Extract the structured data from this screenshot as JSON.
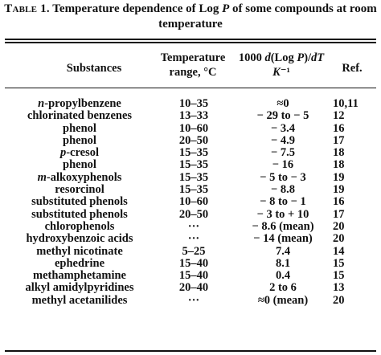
{
  "caption": {
    "label": "Table 1.",
    "line1": "Temperature dependence of Log P of some compounds at room",
    "line2": "temperature"
  },
  "headers": {
    "substances": "Substances",
    "temperature_line1": "Temperature",
    "temperature_line2": "range, °C",
    "deriv_line1": "1000 d(Log P)/dT",
    "deriv_line2": "K⁻¹",
    "ref": "Ref."
  },
  "rows": [
    {
      "substance": "n-propylbenzene",
      "range": "10–35",
      "value": "≈0",
      "ref": "10,11"
    },
    {
      "substance": "chlorinated benzenes",
      "range": "13–33",
      "value": "− 29 to − 5",
      "ref": "12"
    },
    {
      "substance": "phenol",
      "range": "10–60",
      "value": "− 3.4",
      "ref": "16"
    },
    {
      "substance": "phenol",
      "range": "20–50",
      "value": "− 4.9",
      "ref": "17"
    },
    {
      "substance": "p-cresol",
      "range": "15–35",
      "value": "− 7.5",
      "ref": "18"
    },
    {
      "substance": "phenol",
      "range": "15–35",
      "value": "− 16",
      "ref": "18"
    },
    {
      "substance": "m-alkoxyphenols",
      "range": "15–35",
      "value": "− 5 to − 3",
      "ref": "19"
    },
    {
      "substance": "resorcinol",
      "range": "15–35",
      "value": "− 8.8",
      "ref": "19"
    },
    {
      "substance": "substituted phenols",
      "range": "10–60",
      "value": "− 8 to − 1",
      "ref": "16"
    },
    {
      "substance": "substituted phenols",
      "range": "20–50",
      "value": "− 3 to + 10",
      "ref": "17"
    },
    {
      "substance": "chlorophenols",
      "range": "···",
      "value": "− 8.6 (mean)",
      "ref": "20"
    },
    {
      "substance": "hydroxybenzoic acids",
      "range": "···",
      "value": "− 14 (mean)",
      "ref": "20"
    },
    {
      "substance": "methyl nicotinate",
      "range": "5–25",
      "value": "7.4",
      "ref": "14"
    },
    {
      "substance": "ephedrine",
      "range": "15–40",
      "value": "8.1",
      "ref": "15"
    },
    {
      "substance": "methamphetamine",
      "range": "15–40",
      "value": "0.4",
      "ref": "15"
    },
    {
      "substance": "alkyl amidylpyridines",
      "range": "20–40",
      "value": "2 to 6",
      "ref": "13"
    },
    {
      "substance": "methyl acetanilides",
      "range": "···",
      "value": "≈0 (mean)",
      "ref": "20"
    }
  ]
}
